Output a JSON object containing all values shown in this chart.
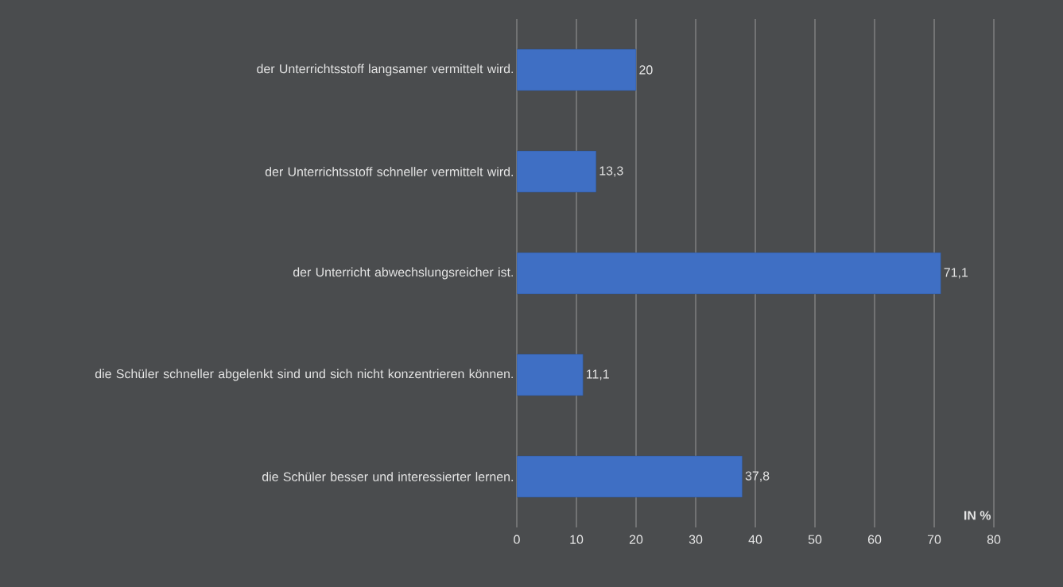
{
  "chart_data": {
    "type": "bar",
    "orientation": "horizontal",
    "xlabel": "IN %",
    "categories": [
      "der Unterrichtsstoff langsamer vermittelt wird.",
      "der Unterrichtsstoff schneller vermittelt wird.",
      "der Unterricht abwechslungsreicher ist.",
      "die Schüler schneller abgelenkt sind und sich nicht konzentrieren können.",
      "die Schüler besser und interessierter lernen."
    ],
    "values": [
      20,
      13.3,
      71.1,
      11.1,
      37.8
    ],
    "value_labels": [
      "20",
      "13,3",
      "71,1",
      "11,1",
      "37,8"
    ],
    "color": "#3f6fc4",
    "xlim": [
      0,
      80
    ],
    "xticks": [
      0,
      10,
      20,
      30,
      40,
      50,
      60,
      70,
      80
    ],
    "grid": "x"
  }
}
